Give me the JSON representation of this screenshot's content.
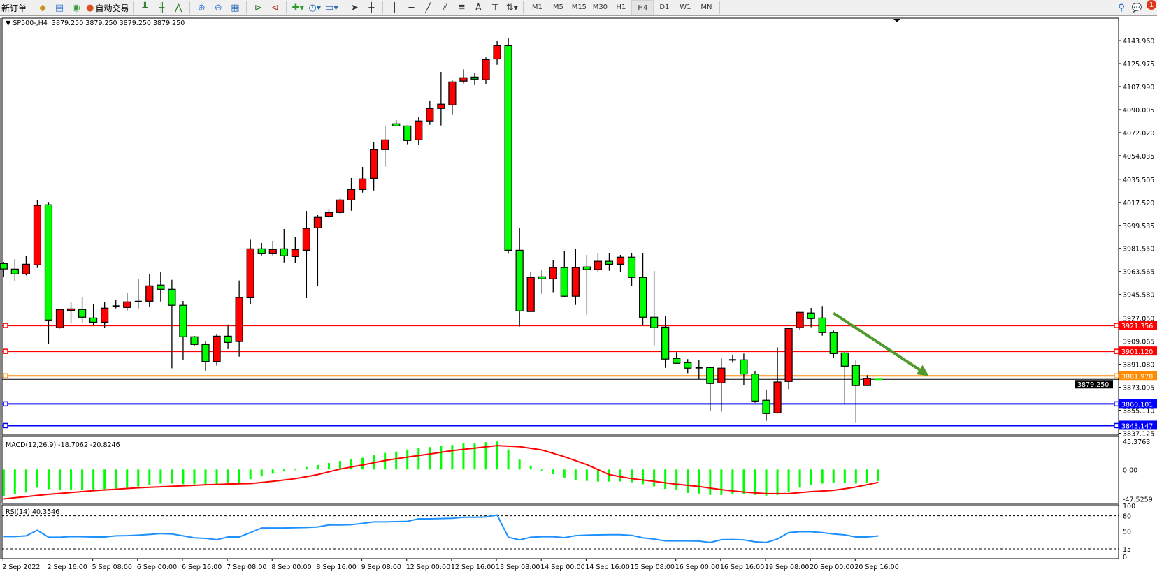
{
  "toolbar": {
    "new_order": "新订单",
    "auto_trading": "自动交易",
    "timeframes": [
      "M1",
      "M5",
      "M15",
      "M30",
      "H1",
      "H4",
      "D1",
      "W1",
      "MN"
    ],
    "active_timeframe": "H4",
    "notification_count": "1",
    "text_tool": "A",
    "icons": [
      "gold-bar-icon",
      "history-icon",
      "signal-icon",
      "auto-trading-icon",
      "bar-chart-icon",
      "candlestick-icon",
      "line-chart-icon",
      "zoom-in-icon",
      "zoom-out-icon",
      "tile-windows-icon",
      "chart-shift-icon",
      "autoscroll-icon",
      "indicators-icon",
      "periods-icon",
      "templates-icon",
      "cursor-icon",
      "crosshair-icon",
      "vertical-line-icon",
      "horizontal-line-icon",
      "trendline-icon",
      "equidistant-channel-icon",
      "fibonacci-icon",
      "text-icon",
      "text-label-icon",
      "arrows-icon",
      "search-icon",
      "notification-icon"
    ]
  },
  "chart": {
    "symbol": "SP500-,H4",
    "ohlc_header": "3879.250 3879.250 3879.250 3879.250",
    "current_price_label": "3879.250",
    "price_axis_labels": [
      "4143.960",
      "4125.975",
      "4107.990",
      "4090.005",
      "4072.020",
      "4054.035",
      "4035.505",
      "4017.520",
      "3999.535",
      "3981.550",
      "3963.565",
      "3945.580",
      "3927.050",
      "3909.065",
      "3891.080",
      "3873.095",
      "3855.110",
      "3837.125"
    ],
    "time_axis_labels": [
      "2 Sep 2022",
      "2 Sep 16:00",
      "5 Sep 08:00",
      "6 Sep 00:00",
      "6 Sep 16:00",
      "7 Sep 08:00",
      "8 Sep 00:00",
      "8 Sep 16:00",
      "9 Sep 08:00",
      "12 Sep 00:00",
      "12 Sep 16:00",
      "13 Sep 08:00",
      "14 Sep 00:00",
      "14 Sep 16:00",
      "15 Sep 08:00",
      "16 Sep 00:00",
      "16 Sep 16:00",
      "19 Sep 08:00",
      "20 Sep 00:00",
      "20 Sep 16:00"
    ],
    "horizontal_levels": [
      {
        "price": 3921.356,
        "label": "3921.356",
        "color": "#ff0000"
      },
      {
        "price": 3901.12,
        "label": "3901.120",
        "color": "#ff0000"
      },
      {
        "price": 3881.978,
        "label": "3881.978",
        "color": "#ff8c00"
      },
      {
        "price": 3860.101,
        "label": "3860.101",
        "color": "#0000ff"
      },
      {
        "price": 3843.147,
        "label": "3843.147",
        "color": "#0000ff"
      }
    ],
    "bull_color": "#ff0000",
    "bear_color": "#00ff00",
    "arrow_color": "#4f9a2c",
    "arrow_annotation": {
      "from": {
        "candle_index": 74,
        "price": 3931
      },
      "to": {
        "candle_index": 82.5,
        "price": 3882
      }
    }
  },
  "chart_data": [
    {
      "type": "candlestick",
      "title": "SP500-,H4",
      "ylim": [
        3837.125,
        4143.96
      ],
      "ohlc": [
        [
          3969.8,
          3971,
          3959,
          3965.5
        ],
        [
          3965.4,
          3973.2,
          3955.9,
          3961.6
        ],
        [
          3961.6,
          3975.4,
          3960.5,
          3969.2
        ],
        [
          3968.7,
          4019.6,
          3966.3,
          4015.1
        ],
        [
          4015.6,
          4017.8,
          3906.8,
          3925.6
        ],
        [
          3919.6,
          3934.5,
          3919,
          3933.8
        ],
        [
          3933.2,
          3939.4,
          3922.9,
          3934.3
        ],
        [
          3933.8,
          3943.2,
          3923.2,
          3927.8
        ],
        [
          3927.2,
          3937.8,
          3921.6,
          3923.9
        ],
        [
          3923.9,
          3939.4,
          3919.4,
          3934.9
        ],
        [
          3936.5,
          3941,
          3934.7,
          3936.4
        ],
        [
          3935.4,
          3947,
          3933,
          3939.8
        ],
        [
          3940.1,
          3957.9,
          3934.7,
          3940.0
        ],
        [
          3940.3,
          3961.7,
          3935.7,
          3952.3
        ],
        [
          3952.9,
          3963.4,
          3940.1,
          3949.6
        ],
        [
          3949.6,
          3957,
          3887.9,
          3937.1
        ],
        [
          3937.1,
          3940.5,
          3894.3,
          3912.5
        ],
        [
          3912.5,
          3913.2,
          3905.2,
          3906.5
        ],
        [
          3906.5,
          3908.8,
          3886,
          3893.2
        ],
        [
          3893.2,
          3914.6,
          3890,
          3913
        ],
        [
          3913,
          3922.1,
          3902.9,
          3908.1
        ],
        [
          3908.8,
          3956.5,
          3897,
          3943.2
        ],
        [
          3943,
          3988.8,
          3938,
          3981.2
        ],
        [
          3981.2,
          3985.8,
          3976.1,
          3977.4
        ],
        [
          3977.4,
          3987.4,
          3976.1,
          3980.7
        ],
        [
          3981.2,
          3996.7,
          3970.6,
          3975.8
        ],
        [
          3975.2,
          3990.1,
          3970.1,
          3980.7
        ],
        [
          3980.1,
          4010.8,
          3942.7,
          3997.1
        ],
        [
          3997.6,
          4007.6,
          3952.5,
          4005.8
        ],
        [
          4006.3,
          4011.8,
          4005.6,
          4009.6
        ],
        [
          4009.6,
          4021.1,
          4008.9,
          4019.4
        ],
        [
          4019.4,
          4036.5,
          4011,
          4027.6
        ],
        [
          4027.6,
          4045.2,
          4025.2,
          4035.8
        ],
        [
          4036.3,
          4064.3,
          4026.8,
          4058.7
        ],
        [
          4058.7,
          4077.4,
          4045.4,
          4066.3
        ],
        [
          4078.9,
          4081.8,
          4076.7,
          4077.2
        ],
        [
          4077.2,
          4077.5,
          4062.9,
          4065.8
        ],
        [
          4066.3,
          4084.5,
          4062.3,
          4081.1
        ],
        [
          4081.1,
          4097.1,
          4078.1,
          4090.9
        ],
        [
          4090.9,
          4119.4,
          4077.6,
          4094.2
        ],
        [
          4093.6,
          4112.7,
          4086.3,
          4111.6
        ],
        [
          4112.2,
          4121.4,
          4110.5,
          4114.9
        ],
        [
          4115.4,
          4118.7,
          4109.2,
          4113.8
        ],
        [
          4113.3,
          4130.7,
          4109.7,
          4129
        ],
        [
          4129.5,
          4144,
          4125,
          4139.9
        ],
        [
          4139.9,
          4145.7,
          3977.4,
          3980.1
        ],
        [
          3980.1,
          3997.8,
          3920.5,
          3932.7
        ],
        [
          3932.2,
          3962.9,
          3932,
          3958.9
        ],
        [
          3959.4,
          3964.5,
          3946.1,
          3957.8
        ],
        [
          3957.8,
          3972.1,
          3947.3,
          3966.6
        ],
        [
          3966.6,
          3979.7,
          3943.4,
          3944.2
        ],
        [
          3944.2,
          3981.4,
          3937.4,
          3966.6
        ],
        [
          3967.1,
          3976.5,
          3929.8,
          3965
        ],
        [
          3965,
          3977.6,
          3963,
          3971.5
        ],
        [
          3971.5,
          3977.6,
          3964.1,
          3969.2
        ],
        [
          3969.2,
          3976.5,
          3963,
          3974.7
        ],
        [
          3974.7,
          3977.6,
          3952.1,
          3958.9
        ],
        [
          3958.9,
          3978.1,
          3921.6,
          3927.8
        ],
        [
          3927.8,
          3963.9,
          3905.8,
          3919.6
        ],
        [
          3920.1,
          3928.9,
          3888.3,
          3895.1
        ],
        [
          3895.6,
          3900.5,
          3891.5,
          3891.8
        ],
        [
          3892.3,
          3895.1,
          3884.1,
          3888
        ],
        [
          3888.3,
          3894.5,
          3879.2,
          3888.2
        ],
        [
          3888.5,
          3888.6,
          3854.4,
          3876
        ],
        [
          3876.5,
          3895.6,
          3854,
          3888
        ],
        [
          3894.5,
          3898.3,
          3892.3,
          3894.4
        ],
        [
          3894.5,
          3899.4,
          3874.6,
          3883.4
        ],
        [
          3883.4,
          3885.9,
          3861,
          3862.3
        ],
        [
          3862.9,
          3870.7,
          3846.9,
          3852.5
        ],
        [
          3853.1,
          3904.3,
          3852.5,
          3877.2
        ],
        [
          3877.6,
          3919.5,
          3871.6,
          3919
        ],
        [
          3919.6,
          3932,
          3917.9,
          3931.6
        ],
        [
          3931.1,
          3935,
          3920,
          3926.7
        ],
        [
          3927.2,
          3936.5,
          3913.4,
          3915.8
        ],
        [
          3915.8,
          3917.4,
          3896.1,
          3899.4
        ],
        [
          3899.9,
          3901,
          3860.1,
          3889.6
        ],
        [
          3890.2,
          3894,
          3845.2,
          3874.4
        ],
        [
          3874.4,
          3882.5,
          3874.4,
          3879.9
        ],
        [
          3879.25,
          3879.25,
          3879.25,
          3879.25
        ]
      ]
    },
    {
      "type": "bar",
      "title": "MACD(12,26,9) -18.7062 -20.8246",
      "ylim": [
        -47.5259,
        45.3763
      ],
      "tick_labels": [
        "45.3763",
        "0.00",
        "-47.5259"
      ],
      "series": [
        {
          "kind": "histogram",
          "color": "#00ff00",
          "values": [
            -42.6,
            -40.0,
            -37.2,
            -29.3,
            -31.7,
            -32.8,
            -32.8,
            -32.8,
            -33.2,
            -31.7,
            -30.6,
            -29.3,
            -27.4,
            -24.8,
            -22.7,
            -22.7,
            -23.8,
            -23.8,
            -24.6,
            -24.6,
            -22.4,
            -22.0,
            -15.5,
            -11.2,
            -6.8,
            -3.2,
            -1.1,
            4.0,
            7.2,
            10.5,
            13.7,
            16.9,
            18.8,
            23.5,
            26.7,
            28.9,
            32.1,
            34.2,
            36.1,
            37.5,
            39.5,
            41.9,
            41.9,
            44.0,
            45.1,
            32.1,
            15.8,
            6.2,
            -1.8,
            -7.5,
            -13.0,
            -16.6,
            -18.4,
            -19.5,
            -19.5,
            -19.5,
            -20.5,
            -23.8,
            -27.4,
            -31.4,
            -32.8,
            -37.9,
            -38.9,
            -41.1,
            -41.1,
            -40.0,
            -39.7,
            -41.1,
            -42.2,
            -41.1,
            -35.7,
            -29.3,
            -25.2,
            -22.7,
            -21.6,
            -21.6,
            -22.7,
            -21.0,
            -18.7
          ]
        },
        {
          "kind": "line",
          "color": "#ff0000",
          "values": [
            -47.5,
            -45.6,
            -43.8,
            -41.9,
            -40.0,
            -38.6,
            -37.1,
            -35.7,
            -34.2,
            -33.0,
            -31.9,
            -30.7,
            -29.5,
            -28.7,
            -27.9,
            -27.1,
            -26.3,
            -25.5,
            -24.6,
            -24.1,
            -23.5,
            -23.1,
            -22.7,
            -20.9,
            -19.1,
            -17.0,
            -14.8,
            -11.6,
            -8.3,
            -3.8,
            0.7,
            4.0,
            7.2,
            10.8,
            14.4,
            17.2,
            19.9,
            22.4,
            24.8,
            27.6,
            30.3,
            32.4,
            34.4,
            36.5,
            38.5,
            37.7,
            36.8,
            34.1,
            31.4,
            26.0,
            20.5,
            14.2,
            7.9,
            -0.2,
            -8.3,
            -11.6,
            -14.8,
            -17.0,
            -19.1,
            -21.5,
            -23.8,
            -25.6,
            -27.4,
            -30.0,
            -32.5,
            -34.5,
            -36.4,
            -37.7,
            -38.9,
            -38.9,
            -38.9,
            -37.3,
            -35.7,
            -34.7,
            -33.6,
            -31.0,
            -28.2,
            -24.5,
            -20.8
          ]
        }
      ]
    },
    {
      "type": "line",
      "title": "RSI(14) 40.3546",
      "ylim": [
        0,
        100
      ],
      "levels": [
        80,
        50,
        15
      ],
      "tick_labels": [
        "100",
        "80",
        "50",
        "15",
        "0"
      ],
      "series": [
        {
          "color": "#1e90ff",
          "values": [
            39.2,
            39.2,
            40.6,
            51.5,
            37.9,
            37.9,
            39.2,
            38.8,
            38.4,
            38.4,
            40.6,
            41.0,
            41.9,
            43.3,
            45.1,
            44.2,
            40.6,
            36.6,
            35.7,
            33.0,
            38.4,
            38.4,
            46.9,
            56.0,
            56.0,
            56.0,
            56.5,
            57.0,
            58.0,
            62.0,
            62.0,
            62.5,
            65.0,
            68.0,
            68.0,
            68.5,
            69.0,
            74.0,
            74.0,
            74.5,
            75.0,
            77.0,
            77.0,
            77.5,
            81.5,
            37.9,
            32.5,
            37.9,
            38.8,
            38.8,
            37.0,
            41.0,
            41.9,
            42.4,
            42.8,
            42.8,
            41.5,
            36.6,
            34.3,
            30.7,
            30.7,
            30.7,
            30.3,
            27.6,
            33.0,
            33.4,
            32.5,
            28.9,
            27.6,
            34.3,
            46.9,
            48.7,
            48.7,
            46.9,
            44.2,
            42.4,
            38.4,
            38.4,
            40.35
          ]
        }
      ]
    }
  ]
}
